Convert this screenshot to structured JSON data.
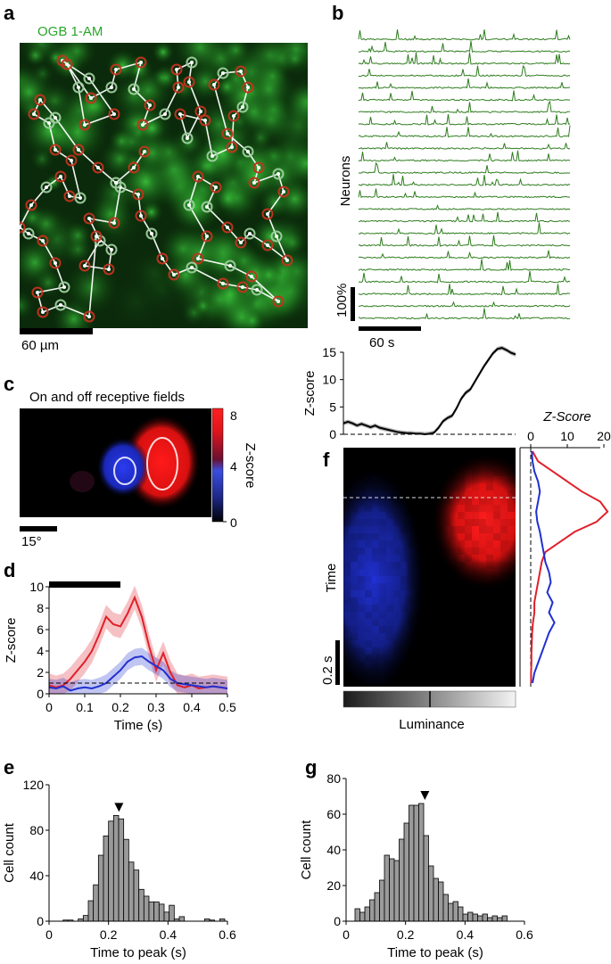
{
  "panel_letters": {
    "a": "a",
    "b": "b",
    "c": "c",
    "d": "d",
    "e": "e",
    "f": "f",
    "g": "g"
  },
  "panel_a": {
    "dye_label": "OGB 1-AM",
    "scalebar_label": "60 µm",
    "colors": {
      "fluorescence": "#2aa52a",
      "path": "#ffffff",
      "cell_marker": "#c0392b"
    }
  },
  "panel_b": {
    "ylabel": "Neurons",
    "scale_y_label": "100%",
    "scale_x_label": "60 s",
    "n_traces": 24,
    "trace_color": "#2e7d1e"
  },
  "panel_c": {
    "title": "On and off receptive fields",
    "colorbar_label": "Z-score",
    "colorbar_ticks": [
      "8",
      "4",
      "0"
    ],
    "scalebar_label": "15°",
    "colors": {
      "on": "#e8141e",
      "off": "#2b3bd6"
    }
  },
  "chart_data": [
    {
      "id": "d",
      "type": "line",
      "xlabel": "Time (s)",
      "ylabel": "Z-score",
      "xlim": [
        0,
        0.5
      ],
      "ylim": [
        0,
        10
      ],
      "xticks": [
        "0",
        "0.1",
        "0.2",
        "0.3",
        "0.4",
        "0.5"
      ],
      "yticks": [
        "0",
        "2",
        "4",
        "6",
        "8",
        "10"
      ],
      "stimulus_bar": [
        0,
        0.2
      ],
      "baseline": 1,
      "x": [
        0,
        0.02,
        0.04,
        0.06,
        0.08,
        0.1,
        0.12,
        0.14,
        0.16,
        0.18,
        0.2,
        0.22,
        0.24,
        0.26,
        0.28,
        0.3,
        0.32,
        0.34,
        0.36,
        0.38,
        0.4,
        0.42,
        0.44,
        0.46,
        0.48,
        0.5
      ],
      "series": [
        {
          "color": "#e0202a",
          "values": [
            0.8,
            0.6,
            0.8,
            1.4,
            2.2,
            3.0,
            4.0,
            5.5,
            7.2,
            6.5,
            6.3,
            7.5,
            9.0,
            7.2,
            4.5,
            2.2,
            3.8,
            2.0,
            0.8,
            0.6,
            0.8,
            0.5,
            0.6,
            0.7,
            0.6,
            0.5
          ]
        },
        {
          "color": "#2030d0",
          "values": [
            0.6,
            0.5,
            0.7,
            0.3,
            0.5,
            0.6,
            0.5,
            0.7,
            1.0,
            1.6,
            2.2,
            3.0,
            3.4,
            3.5,
            3.0,
            2.6,
            2.2,
            1.4,
            1.0,
            0.9,
            0.8,
            0.7,
            0.6,
            0.7,
            0.6,
            0.5
          ]
        }
      ]
    },
    {
      "id": "e",
      "type": "bar",
      "xlabel": "Time to peak (s)",
      "ylabel": "Cell count",
      "xlim": [
        0,
        0.6
      ],
      "ylim": [
        0,
        120
      ],
      "xticks": [
        "0",
        "0.2",
        "0.4",
        "0.6"
      ],
      "yticks": [
        "0",
        "40",
        "80",
        "120"
      ],
      "bin_width": 0.017,
      "bin_start": 0.03,
      "values": [
        0,
        1,
        1,
        0,
        2,
        5,
        18,
        32,
        58,
        75,
        88,
        93,
        90,
        72,
        52,
        45,
        28,
        22,
        17,
        17,
        15,
        8,
        14,
        2,
        4,
        0,
        0,
        0,
        0,
        2,
        1,
        0,
        2,
        0
      ],
      "median_marker": 0.235
    },
    {
      "id": "f_time",
      "type": "line",
      "xlabel": "",
      "ylabel": "Z-score",
      "ylim": [
        0,
        15
      ],
      "yticks": [
        "0",
        "5",
        "10",
        "15"
      ],
      "series": [
        {
          "color": "#000000",
          "values": [
            2.0,
            2.3,
            2.0,
            1.6,
            1.9,
            1.6,
            1.3,
            1.6,
            1.2,
            1.0,
            0.8,
            0.6,
            0.4,
            0.3,
            0.2,
            0.2,
            0.1,
            0.1,
            0.0,
            0.1,
            0.3,
            1.2,
            2.4,
            3.0,
            3.4,
            4.8,
            6.5,
            7.6,
            8.2,
            9.6,
            11.0,
            12.4,
            13.6,
            14.8,
            15.6,
            15.8,
            15.4,
            14.9,
            14.6
          ]
        }
      ]
    },
    {
      "id": "f_lum",
      "type": "line",
      "title": "Z-Score",
      "xlim": [
        0,
        20
      ],
      "xticks": [
        "0",
        "10",
        "20"
      ],
      "series": [
        {
          "color": "#e0202a",
          "values": [
            0.5,
            2,
            6,
            10,
            14,
            19,
            21,
            18,
            12,
            8,
            4,
            3,
            2.5,
            2,
            1.5,
            1,
            1,
            0.6,
            0.4,
            0.3,
            0.2,
            0.2,
            0.1,
            0.1
          ]
        },
        {
          "color": "#2030d0",
          "values": [
            0.3,
            0.5,
            1,
            2,
            2.5,
            2,
            1.5,
            1.8,
            2.5,
            3,
            3.5,
            4,
            5,
            5.5,
            4.5,
            6,
            5,
            6.5,
            5,
            4,
            3,
            2,
            1,
            0.5
          ]
        }
      ]
    },
    {
      "id": "g",
      "type": "bar",
      "xlabel": "Time to peak (s)",
      "ylabel": "Cell count",
      "xlim": [
        0,
        0.6
      ],
      "ylim": [
        0,
        80
      ],
      "xticks": [
        "0",
        "0.2",
        "0.4",
        "0.6"
      ],
      "yticks": [
        "0",
        "20",
        "40",
        "60",
        "80"
      ],
      "bin_width": 0.0165,
      "bin_start": 0.03,
      "values": [
        7,
        5,
        8,
        12,
        16,
        23,
        37,
        35,
        34,
        46,
        55,
        65,
        65,
        66,
        48,
        31,
        24,
        22,
        15,
        10,
        11,
        8,
        4,
        5,
        4,
        3,
        4,
        2,
        3,
        2,
        3
      ],
      "median_marker": 0.265
    }
  ],
  "panel_f": {
    "ylabel": "Time",
    "time_scale_label": "0.2 s",
    "luminance_label": "Luminance"
  }
}
